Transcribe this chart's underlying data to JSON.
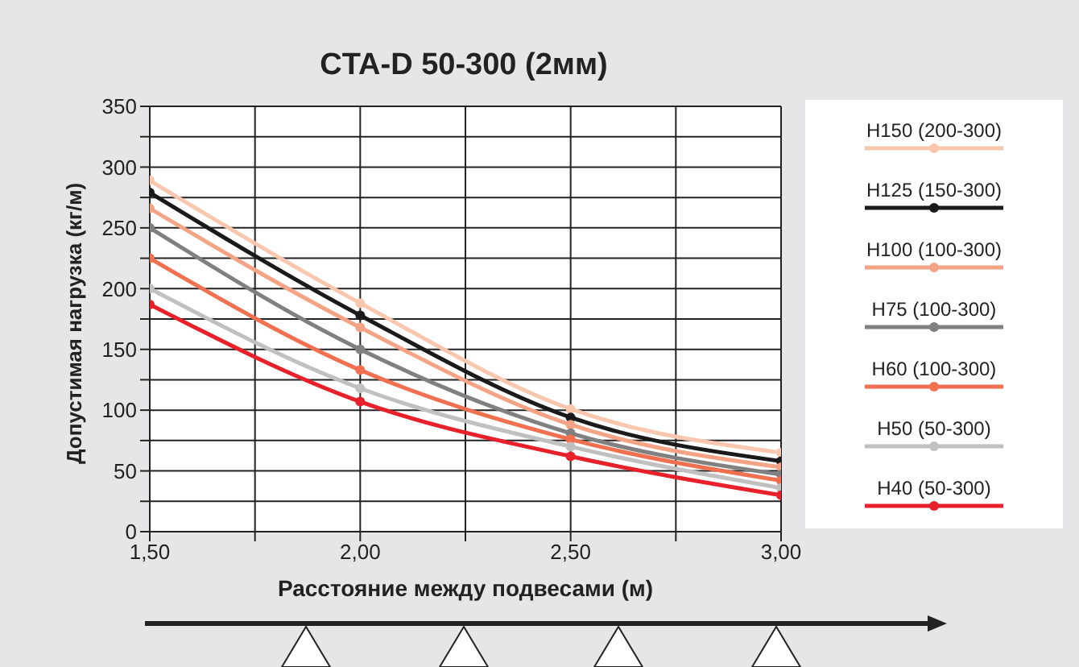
{
  "chart_data": {
    "type": "line",
    "title": "CTA-D 50-300 (2мм)",
    "xlabel": "Расстояние между подвесами (м)",
    "ylabel": "Допустимая нагрузка (кг/м)",
    "x": [
      1.5,
      2.0,
      2.5,
      3.0
    ],
    "series": [
      {
        "name": "H150 (200-300)",
        "color": "#f9c6ae",
        "values": [
          289,
          188,
          101,
          65
        ]
      },
      {
        "name": "H125 (150-300)",
        "color": "#1a1a1a",
        "values": [
          279,
          178,
          94,
          58
        ]
      },
      {
        "name": "H100 (100-300)",
        "color": "#f4a385",
        "values": [
          266,
          168,
          88,
          53
        ]
      },
      {
        "name": "H75 (100-300)",
        "color": "#808080",
        "values": [
          250,
          150,
          81,
          47
        ]
      },
      {
        "name": "H60 (100-300)",
        "color": "#f07050",
        "values": [
          225,
          133,
          76,
          42
        ]
      },
      {
        "name": "H50 (50-300)",
        "color": "#c0c0c0",
        "values": [
          200,
          118,
          70,
          36
        ]
      },
      {
        "name": "H40 (50-300)",
        "color": "#e8202a",
        "values": [
          187,
          107,
          62,
          30
        ]
      }
    ],
    "xlim": [
      1.5,
      3.0
    ],
    "xticks": [
      {
        "value": 1.5,
        "label": "1,50"
      },
      {
        "value": 1.75,
        "label": null
      },
      {
        "value": 2.0,
        "label": "2,00"
      },
      {
        "value": 2.25,
        "label": null
      },
      {
        "value": 2.5,
        "label": "2,50"
      },
      {
        "value": 2.75,
        "label": null
      },
      {
        "value": 3.0,
        "label": "3,00"
      }
    ],
    "ylim": [
      0,
      350
    ],
    "yticks": [
      0,
      {
        "value": 25,
        "label": null
      },
      50,
      {
        "value": 75,
        "label": null
      },
      100,
      {
        "value": 125,
        "label": null
      },
      150,
      {
        "value": 175,
        "label": null
      },
      200,
      {
        "value": 225,
        "label": null
      },
      250,
      {
        "value": 275,
        "label": null
      },
      300,
      {
        "value": 325,
        "label": null
      },
      350
    ],
    "grid": true,
    "legend": "right",
    "marker": "circle",
    "line_style": "solid"
  }
}
